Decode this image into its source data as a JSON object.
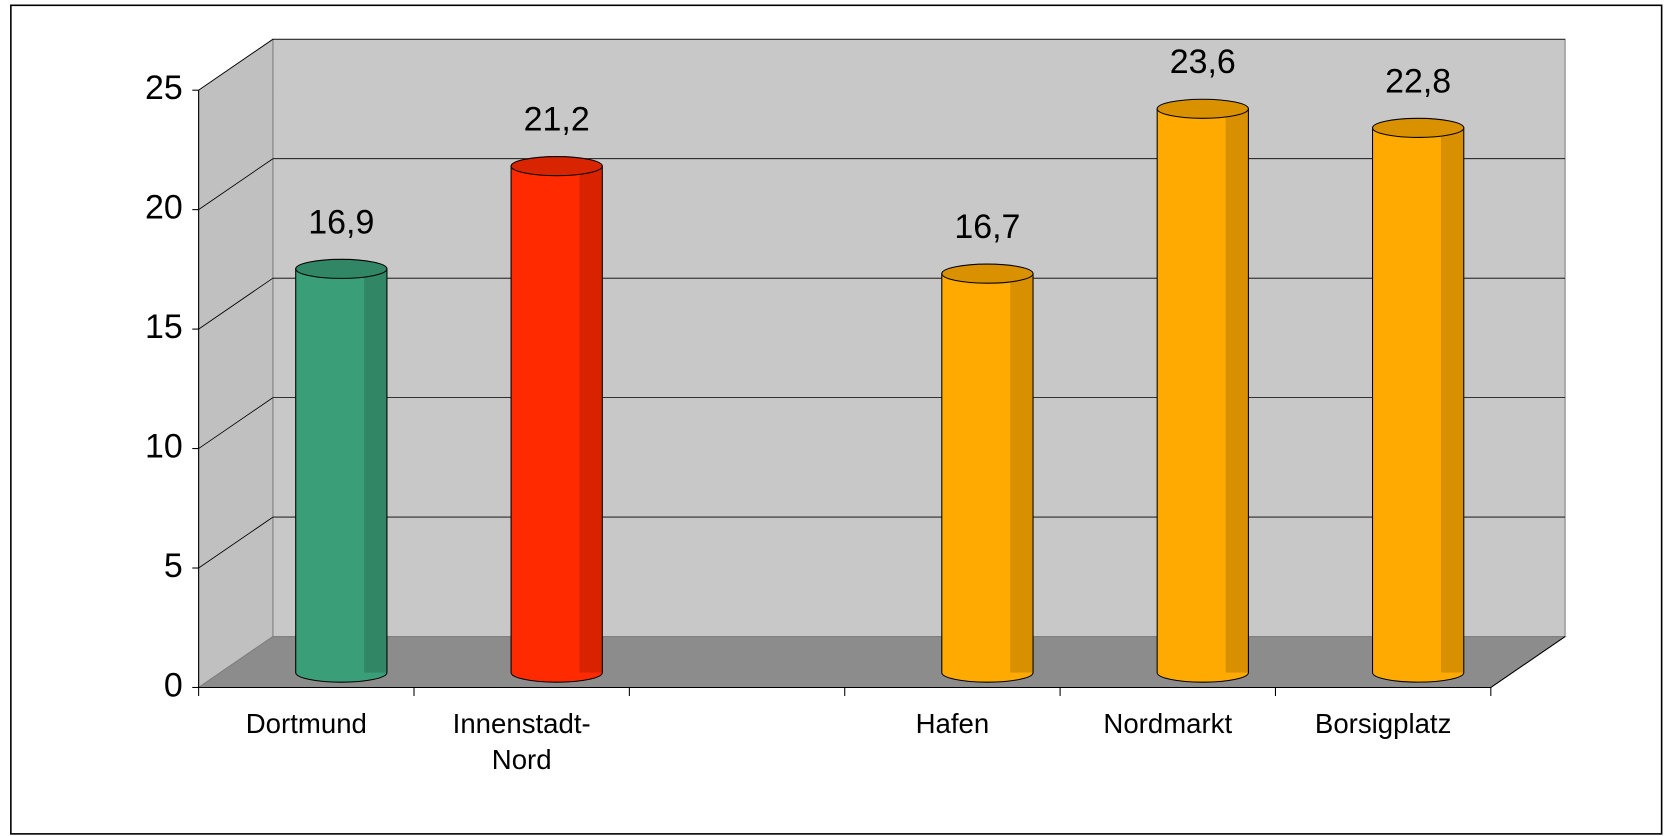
{
  "chart_data": {
    "type": "bar3d",
    "categories": [
      "Dortmund",
      "Innenstadt-Nord",
      null,
      "Hafen",
      "Nordmarkt",
      "Borsigplatz"
    ],
    "values": [
      16.9,
      21.2,
      null,
      16.7,
      23.6,
      22.8
    ],
    "value_labels": [
      "16,9",
      "21,2",
      null,
      "16,7",
      "23,6",
      "22,8"
    ],
    "colors": [
      "#3a9e78",
      "#ff2a00",
      null,
      "#ffaa00",
      "#ffaa00",
      "#ffaa00"
    ],
    "ylim": [
      0,
      25
    ],
    "yticks": [
      0,
      5,
      10,
      15,
      20,
      25
    ],
    "grid": true
  }
}
